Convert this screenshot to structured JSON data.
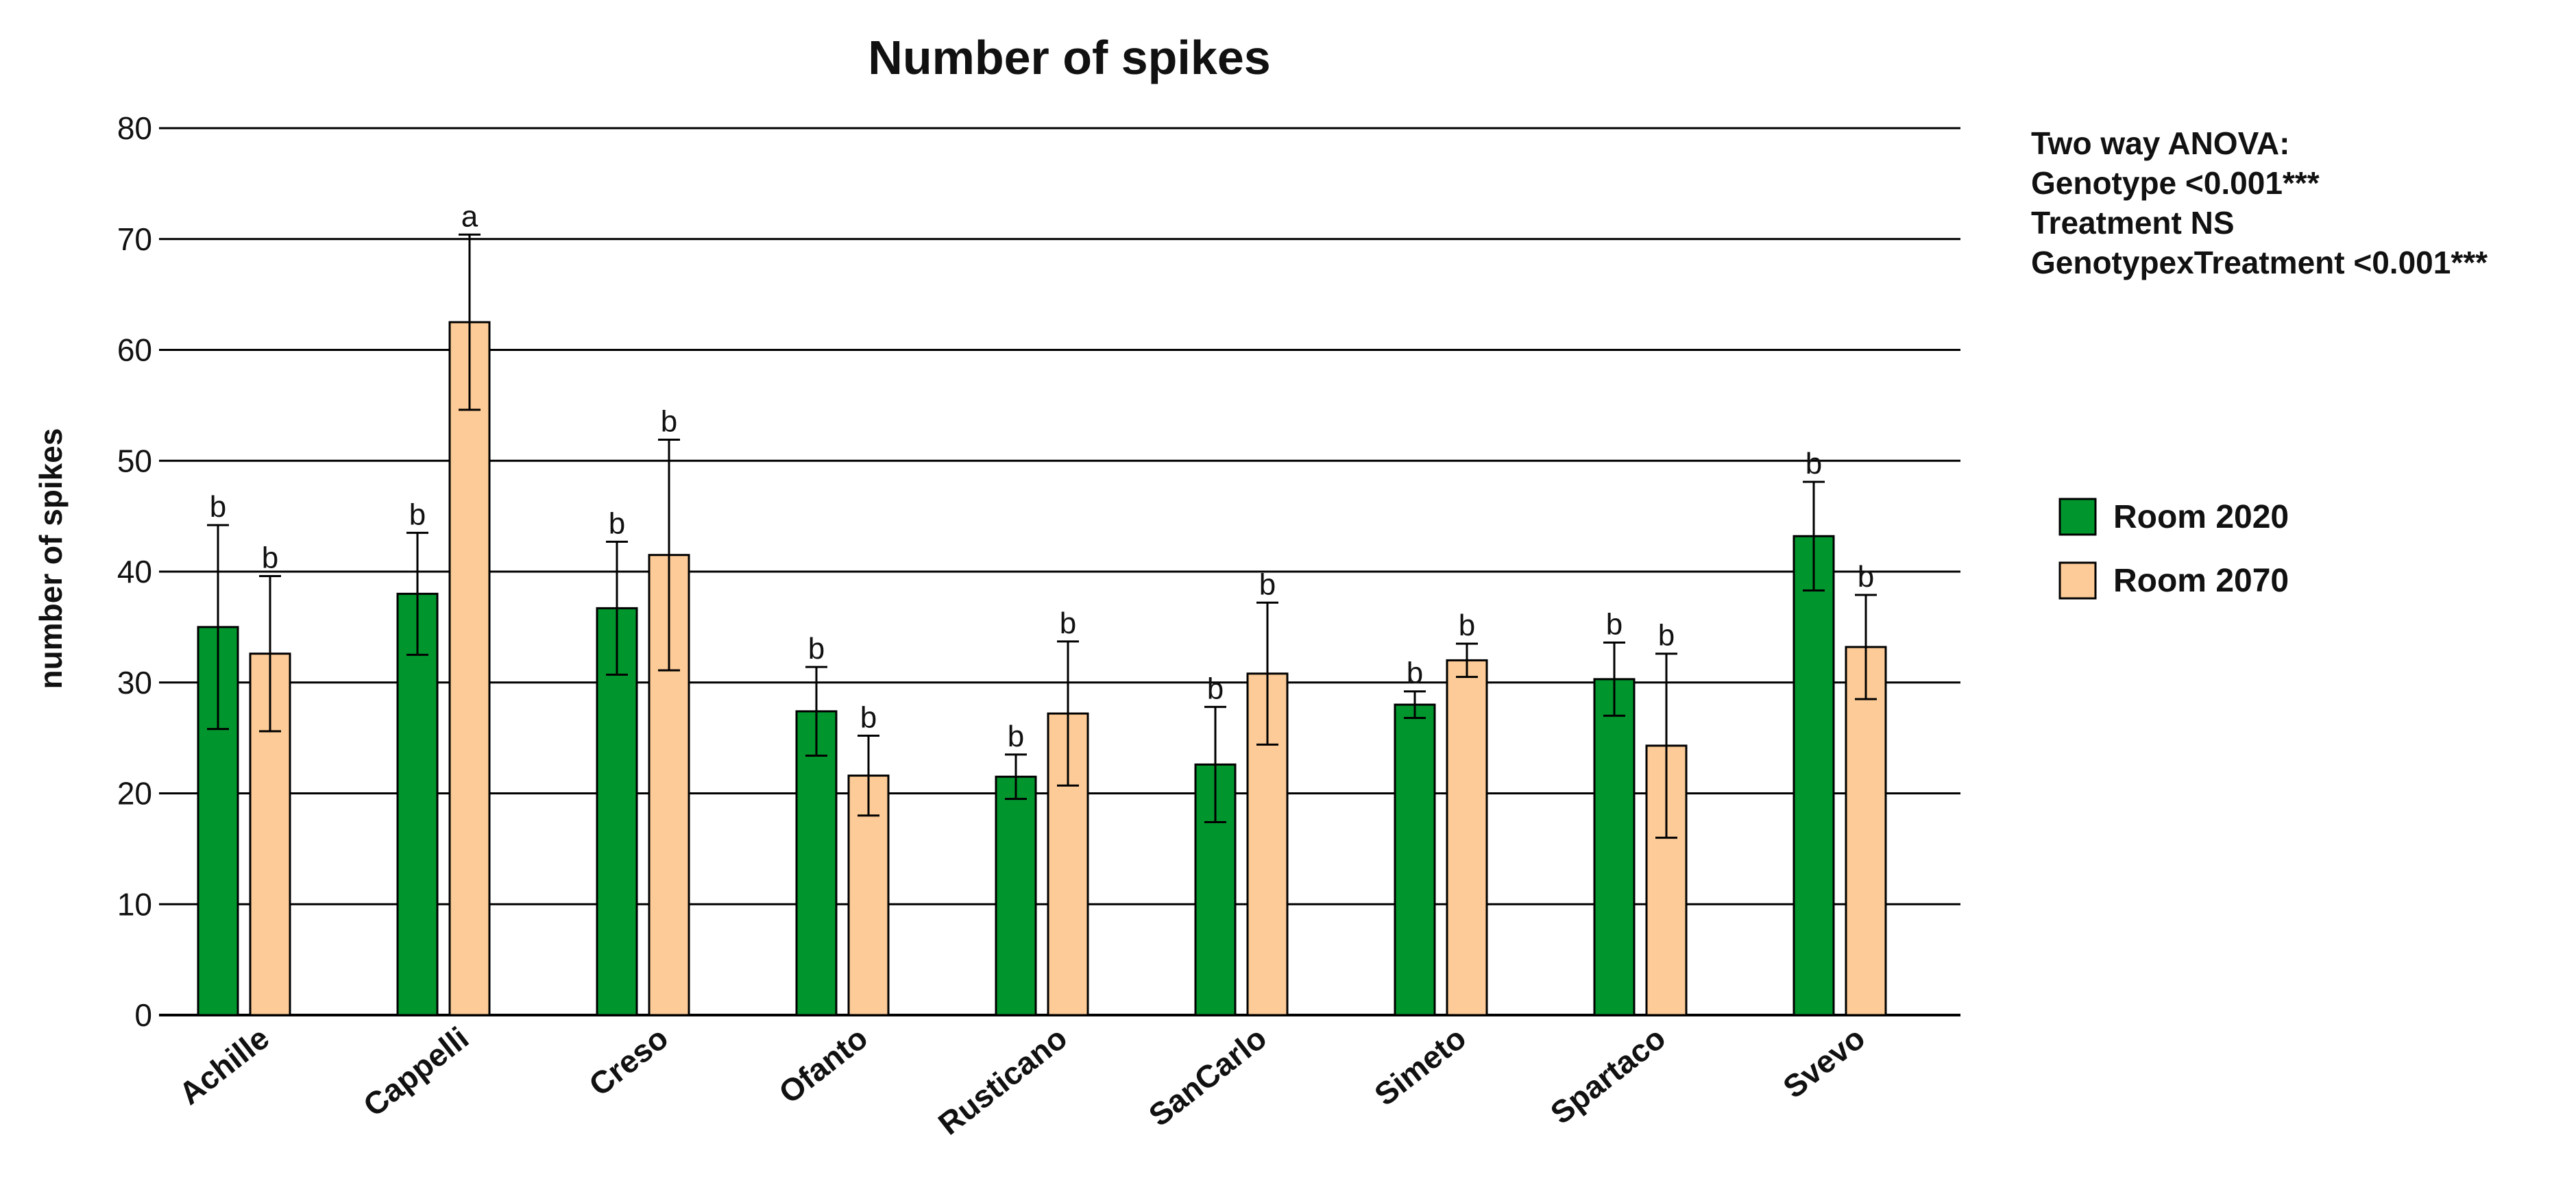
{
  "chart_data": {
    "type": "bar",
    "title": "Number of spikes",
    "xlabel": "",
    "ylabel": "number of spikes",
    "ylim": [
      0,
      80
    ],
    "yticks": [
      0,
      10,
      20,
      30,
      40,
      50,
      60,
      70,
      80
    ],
    "grid": true,
    "legend_position": "right",
    "categories": [
      "Achille",
      "Cappelli",
      "Creso",
      "Ofanto",
      "Rusticano",
      "SanCarlo",
      "Simeto",
      "Spartaco",
      "Svevo"
    ],
    "series": [
      {
        "name": "Room 2020",
        "color": "#00962D",
        "values": [
          35.0,
          38.0,
          36.7,
          27.4,
          21.5,
          22.6,
          28.0,
          30.3,
          43.2
        ],
        "error": [
          9.2,
          5.5,
          6.0,
          4.0,
          2.0,
          5.2,
          1.2,
          3.3,
          4.9
        ],
        "labels": [
          "b",
          "b",
          "b",
          "b",
          "b",
          "b",
          "b",
          "b",
          "b"
        ]
      },
      {
        "name": "Room 2070",
        "color": "#FDCB97",
        "values": [
          32.6,
          62.5,
          41.5,
          21.6,
          27.2,
          30.8,
          32.0,
          24.3,
          33.2
        ],
        "error": [
          7.0,
          7.9,
          10.4,
          3.6,
          6.5,
          6.4,
          1.5,
          8.3,
          4.7
        ],
        "labels": [
          "b",
          "a",
          "b",
          "b",
          "b",
          "b",
          "b",
          "b",
          "b"
        ]
      }
    ],
    "annotation": [
      "Two way ANOVA:",
      "Genotype <0.001***",
      "Treatment NS",
      "GenotypexTreatment <0.001***"
    ]
  }
}
